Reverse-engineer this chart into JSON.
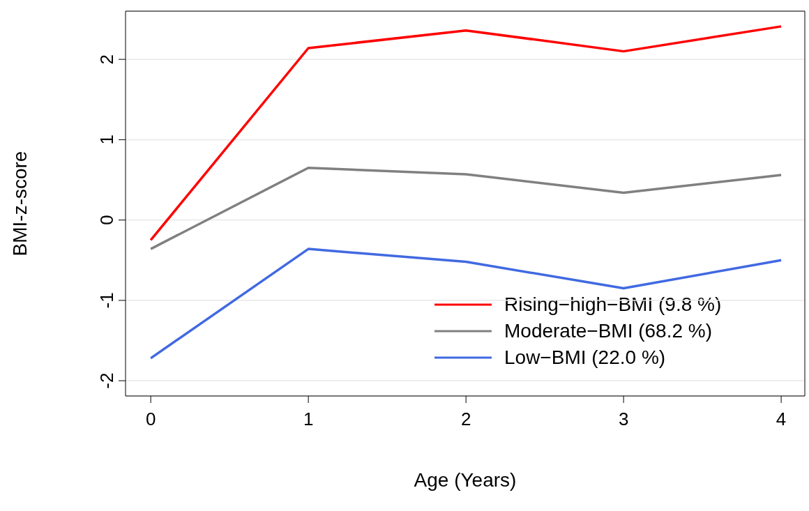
{
  "chart_data": {
    "type": "line",
    "xlabel": "Age (Years)",
    "ylabel": "BMI-z-score",
    "x": [
      0,
      1,
      2,
      3,
      4
    ],
    "series": [
      {
        "name": "Rising−high−BMI (9.8 %)",
        "color": "#ff0000",
        "values": [
          -0.25,
          2.14,
          2.36,
          2.1,
          2.41
        ]
      },
      {
        "name": "Moderate−BMI (68.2 %)",
        "color": "#808080",
        "values": [
          -0.36,
          0.65,
          0.57,
          0.34,
          0.56
        ]
      },
      {
        "name": "Low−BMI (22.0 %)",
        "color": "#4169e1",
        "values": [
          -1.72,
          -0.36,
          -0.52,
          -0.85,
          -0.5
        ]
      }
    ],
    "xlim": [
      -0.16,
      4.15
    ],
    "xticks": [
      0,
      1,
      2,
      3,
      4
    ],
    "ylim": [
      -2.19,
      2.6
    ],
    "yticks": [
      -2,
      -1,
      0,
      1,
      2
    ],
    "grid": "y",
    "legend": "bottom right",
    "marker": "none",
    "line_style": "solid"
  }
}
